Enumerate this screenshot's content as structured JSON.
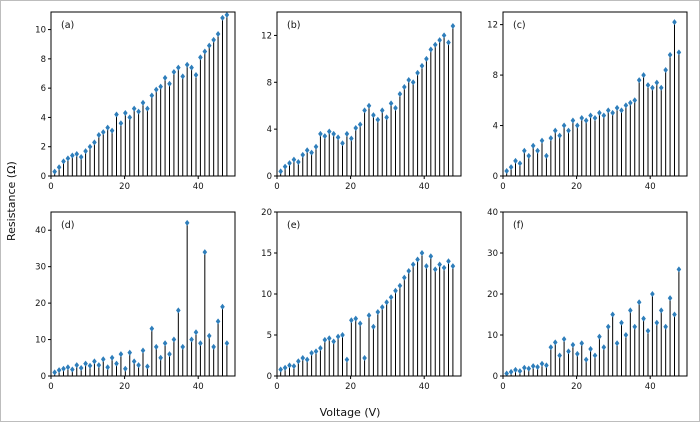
{
  "chart_data": {
    "type": "stem",
    "xlabel": "Voltage (V)",
    "ylabel": "Resistance (Ω)",
    "xlim": [
      0,
      50
    ],
    "xticks": [
      0,
      20,
      40
    ],
    "colors": {
      "stem": "#000000",
      "marker": "#2e7ebb"
    },
    "x": [
      1,
      2.2,
      3.4,
      4.6,
      5.8,
      7,
      8.2,
      9.4,
      10.6,
      11.8,
      13,
      14.2,
      15.4,
      16.6,
      17.8,
      19,
      20.2,
      21.4,
      22.6,
      23.8,
      25,
      26.2,
      27.4,
      28.6,
      29.8,
      31,
      32.2,
      33.4,
      34.6,
      35.8,
      37,
      38.2,
      39.4,
      40.6,
      41.8,
      43,
      44.2,
      45.4,
      46.6,
      47.8
    ],
    "panels": [
      {
        "label": "(a)",
        "ylim": [
          0,
          11.2
        ],
        "yticks": [
          0,
          2,
          4,
          6,
          8,
          10
        ],
        "values": [
          0.3,
          0.6,
          1.0,
          1.2,
          1.4,
          1.5,
          1.3,
          1.7,
          2.0,
          2.3,
          2.8,
          3.0,
          3.3,
          3.1,
          4.2,
          3.6,
          4.3,
          4.0,
          4.6,
          4.4,
          5.0,
          4.6,
          5.5,
          5.9,
          6.1,
          6.7,
          6.3,
          7.1,
          7.4,
          6.8,
          7.6,
          7.4,
          6.9,
          8.1,
          8.5,
          8.9,
          9.3,
          9.7,
          10.8,
          11.0
        ]
      },
      {
        "label": "(b)",
        "ylim": [
          0,
          14
        ],
        "yticks": [
          0,
          4,
          8,
          12
        ],
        "values": [
          0.4,
          0.8,
          1.1,
          1.4,
          1.2,
          1.8,
          2.2,
          2.0,
          2.5,
          3.6,
          3.4,
          3.8,
          3.6,
          3.3,
          2.8,
          3.6,
          3.2,
          4.1,
          4.4,
          5.6,
          6.0,
          5.2,
          4.8,
          5.6,
          5.0,
          6.2,
          5.8,
          7.0,
          7.6,
          8.2,
          8.0,
          8.8,
          9.4,
          10.0,
          10.8,
          11.2,
          11.6,
          12.0,
          11.4,
          12.8
        ]
      },
      {
        "label": "(c)",
        "ylim": [
          0,
          13
        ],
        "yticks": [
          0,
          4,
          8,
          12
        ],
        "values": [
          0.4,
          0.7,
          1.2,
          1.0,
          2.0,
          1.6,
          2.4,
          2.0,
          2.8,
          1.6,
          3.0,
          3.6,
          3.2,
          4.0,
          3.6,
          4.4,
          4.0,
          4.6,
          4.4,
          4.8,
          4.6,
          5.0,
          4.8,
          5.2,
          5.0,
          5.4,
          5.2,
          5.6,
          5.8,
          6.0,
          7.6,
          8.0,
          7.2,
          7.0,
          7.4,
          7.0,
          8.4,
          9.6,
          12.2,
          9.8
        ]
      },
      {
        "label": "(d)",
        "ylim": [
          0,
          45
        ],
        "yticks": [
          0,
          10,
          20,
          30,
          40
        ],
        "values": [
          1.0,
          1.6,
          2.0,
          2.4,
          1.8,
          3.0,
          2.2,
          3.4,
          2.8,
          4.0,
          3.0,
          4.6,
          2.4,
          5.0,
          3.4,
          6.0,
          2.0,
          6.4,
          4.0,
          3.0,
          7.0,
          2.6,
          13.0,
          8.0,
          5.0,
          9.0,
          6.0,
          10.0,
          18.0,
          8.0,
          42.0,
          10.0,
          12.0,
          9.0,
          34.0,
          11.0,
          8.0,
          15.0,
          19.0,
          9.0
        ]
      },
      {
        "label": "(e)",
        "ylim": [
          0,
          20
        ],
        "yticks": [
          0,
          5,
          10,
          15,
          20
        ],
        "values": [
          0.8,
          1.0,
          1.3,
          1.2,
          1.8,
          2.2,
          2.0,
          2.8,
          3.0,
          3.4,
          4.4,
          4.6,
          4.2,
          4.8,
          5.0,
          2.0,
          6.8,
          7.0,
          6.4,
          2.2,
          7.4,
          6.0,
          7.8,
          8.4,
          9.0,
          9.6,
          10.4,
          11.0,
          12.0,
          12.8,
          13.6,
          14.2,
          15.0,
          13.4,
          14.6,
          13.0,
          13.6,
          13.2,
          14.0,
          13.4
        ]
      },
      {
        "label": "(f)",
        "ylim": [
          0,
          40
        ],
        "yticks": [
          0,
          10,
          20,
          30,
          40
        ],
        "values": [
          0.6,
          1.0,
          1.5,
          1.2,
          2.0,
          1.8,
          2.4,
          2.2,
          3.0,
          2.6,
          7.0,
          8.2,
          5.0,
          9.0,
          6.0,
          7.6,
          5.4,
          8.0,
          4.0,
          6.6,
          5.0,
          9.6,
          7.0,
          12.0,
          15.0,
          8.0,
          13.0,
          10.0,
          16.0,
          12.0,
          18.0,
          14.0,
          11.0,
          20.0,
          13.0,
          16.0,
          12.0,
          19.0,
          15.0,
          26.0
        ]
      }
    ]
  }
}
